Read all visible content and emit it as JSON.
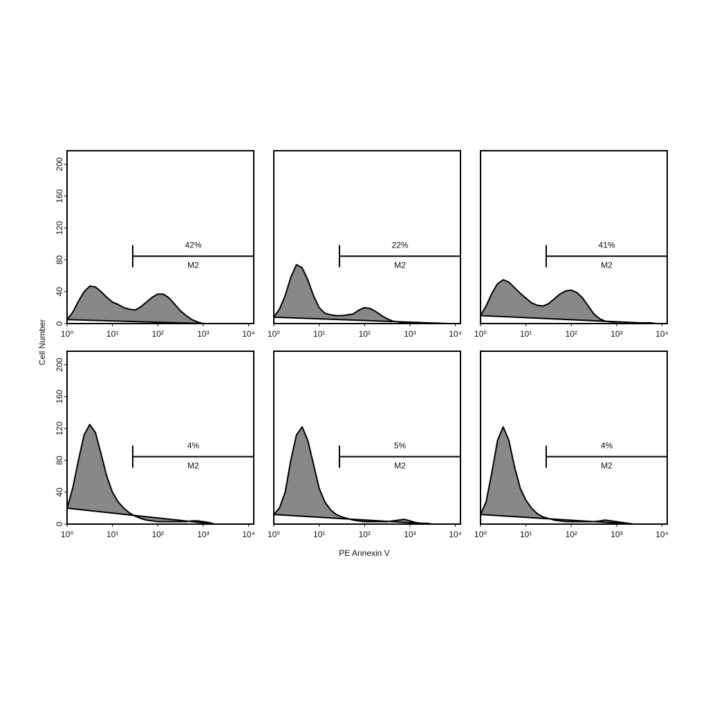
{
  "xlabel": "PE Annexin V",
  "ylabel": "Cell Number",
  "chart_data": [
    {
      "type": "area",
      "color": "#888888",
      "xscale": "log",
      "xlim": [
        1,
        13000
      ],
      "ylim": [
        0,
        217
      ],
      "yticks": [
        0,
        40,
        80,
        120,
        160,
        200
      ],
      "xticks": [
        {
          "value": 1,
          "label": "10⁰"
        },
        {
          "value": 10,
          "label": "10¹"
        },
        {
          "value": 100,
          "label": "10²"
        },
        {
          "value": 1000,
          "label": "10³"
        },
        {
          "value": 10000,
          "label": "10⁴"
        }
      ],
      "gate": {
        "label": "M2",
        "percent": "42%",
        "range": [
          28,
          13000
        ]
      },
      "x": [
        1,
        1.33,
        1.78,
        2.37,
        3.16,
        4.22,
        5.62,
        7.5,
        10,
        13.3,
        17.8,
        23.7,
        31.6,
        42.2,
        56.2,
        75,
        100,
        133,
        178,
        237,
        316,
        422,
        562,
        750,
        1000
      ],
      "values": [
        5,
        14,
        28,
        40,
        47,
        46,
        40,
        33,
        27,
        24,
        20,
        18,
        17,
        21,
        27,
        33,
        37,
        37,
        32,
        24,
        16,
        10,
        5,
        2,
        0
      ]
    },
    {
      "type": "area",
      "color": "#888888",
      "xscale": "log",
      "xlim": [
        1,
        13000
      ],
      "ylim": [
        0,
        217
      ],
      "xticks": [
        {
          "value": 1,
          "label": "10⁰"
        },
        {
          "value": 10,
          "label": "10¹"
        },
        {
          "value": 100,
          "label": "10²"
        },
        {
          "value": 1000,
          "label": "10³"
        },
        {
          "value": 10000,
          "label": "10⁴"
        }
      ],
      "gate": {
        "label": "M2",
        "percent": "22%",
        "range": [
          28,
          13000
        ]
      },
      "x": [
        1,
        1.33,
        1.78,
        2.37,
        3.16,
        4.22,
        5.62,
        7.5,
        10,
        13.3,
        17.8,
        23.7,
        31.6,
        42.2,
        56.2,
        75,
        100,
        133,
        178,
        237,
        316,
        422,
        562,
        750,
        1000,
        1334,
        1778,
        2371,
        3162,
        4217,
        5623,
        7499
      ],
      "values": [
        8,
        18,
        35,
        58,
        74,
        70,
        55,
        35,
        20,
        13,
        11,
        10,
        10,
        11,
        12,
        17,
        20,
        19,
        15,
        10,
        6,
        3,
        2,
        1,
        1,
        1,
        1,
        0.5,
        0,
        0,
        0,
        0
      ]
    },
    {
      "type": "area",
      "color": "#888888",
      "xscale": "log",
      "xlim": [
        1,
        13000
      ],
      "ylim": [
        0,
        217
      ],
      "xticks": [
        {
          "value": 1,
          "label": "10⁰"
        },
        {
          "value": 10,
          "label": "10¹"
        },
        {
          "value": 100,
          "label": "10²"
        },
        {
          "value": 1000,
          "label": "10³"
        },
        {
          "value": 10000,
          "label": "10⁴"
        }
      ],
      "gate": {
        "label": "M2",
        "percent": "41%",
        "range": [
          28,
          13000
        ]
      },
      "x": [
        1,
        1.33,
        1.78,
        2.37,
        3.16,
        4.22,
        5.62,
        7.5,
        10,
        13.3,
        17.8,
        23.7,
        31.6,
        42.2,
        56.2,
        75,
        100,
        133,
        178,
        237,
        316,
        422,
        562,
        750,
        1000,
        1334,
        1778,
        2371,
        3162,
        4217,
        5623,
        7499
      ],
      "values": [
        10,
        22,
        38,
        50,
        55,
        52,
        45,
        38,
        32,
        26,
        23,
        22,
        25,
        31,
        37,
        41,
        42,
        39,
        32,
        22,
        12,
        6,
        3,
        2,
        2,
        2,
        1,
        1,
        1,
        1,
        1,
        0
      ]
    },
    {
      "type": "area",
      "color": "#888888",
      "xscale": "log",
      "xlim": [
        1,
        13000
      ],
      "ylim": [
        0,
        217
      ],
      "yticks": [
        0,
        40,
        80,
        120,
        160,
        200
      ],
      "xticks": [
        {
          "value": 1,
          "label": "10⁰"
        },
        {
          "value": 10,
          "label": "10¹"
        },
        {
          "value": 100,
          "label": "10²"
        },
        {
          "value": 1000,
          "label": "10³"
        },
        {
          "value": 10000,
          "label": "10⁴"
        }
      ],
      "gate": {
        "label": "M2",
        "percent": "4%",
        "range": [
          28,
          13000
        ]
      },
      "x": [
        1,
        1.33,
        1.78,
        2.37,
        3.16,
        4.22,
        5.62,
        7.5,
        10,
        13.3,
        17.8,
        23.7,
        31.6,
        42.2,
        56.2,
        75,
        100,
        133,
        178,
        237,
        316,
        422,
        562,
        750,
        1000,
        1334,
        1778
      ],
      "values": [
        20,
        45,
        80,
        112,
        125,
        115,
        88,
        60,
        40,
        28,
        20,
        14,
        10,
        7,
        5,
        4,
        3,
        3,
        3,
        3,
        3,
        3,
        4,
        4,
        3,
        2,
        0
      ]
    },
    {
      "type": "area",
      "color": "#888888",
      "xscale": "log",
      "xlim": [
        1,
        13000
      ],
      "ylim": [
        0,
        217
      ],
      "xticks": [
        {
          "value": 1,
          "label": "10⁰"
        },
        {
          "value": 10,
          "label": "10¹"
        },
        {
          "value": 100,
          "label": "10²"
        },
        {
          "value": 1000,
          "label": "10³"
        },
        {
          "value": 10000,
          "label": "10⁴"
        }
      ],
      "gate": {
        "label": "M2",
        "percent": "5%",
        "range": [
          28,
          13000
        ]
      },
      "x": [
        1,
        1.33,
        1.78,
        2.37,
        3.16,
        4.22,
        5.62,
        7.5,
        10,
        13.3,
        17.8,
        23.7,
        31.6,
        42.2,
        56.2,
        75,
        100,
        133,
        178,
        237,
        316,
        422,
        562,
        750,
        1000,
        1334,
        1778,
        2371,
        3162
      ],
      "values": [
        12,
        20,
        40,
        80,
        112,
        122,
        105,
        75,
        45,
        28,
        18,
        12,
        9,
        7,
        5,
        4,
        3,
        3,
        3,
        3,
        3,
        4,
        5,
        6,
        4,
        2,
        1,
        1,
        0
      ]
    },
    {
      "type": "area",
      "color": "#888888",
      "xscale": "log",
      "xlim": [
        1,
        13000
      ],
      "ylim": [
        0,
        217
      ],
      "xticks": [
        {
          "value": 1,
          "label": "10⁰"
        },
        {
          "value": 10,
          "label": "10¹"
        },
        {
          "value": 100,
          "label": "10²"
        },
        {
          "value": 1000,
          "label": "10³"
        },
        {
          "value": 10000,
          "label": "10⁴"
        }
      ],
      "gate": {
        "label": "M2",
        "percent": "4%",
        "range": [
          28,
          13000
        ]
      },
      "x": [
        1,
        1.33,
        1.78,
        2.37,
        3.16,
        4.22,
        5.62,
        7.5,
        10,
        13.3,
        17.8,
        23.7,
        31.6,
        42.2,
        56.2,
        75,
        100,
        133,
        178,
        237,
        316,
        422,
        562,
        750,
        1000,
        1334,
        1778,
        2371
      ],
      "values": [
        12,
        28,
        65,
        105,
        122,
        105,
        72,
        45,
        30,
        20,
        13,
        9,
        7,
        5,
        4,
        3,
        3,
        3,
        3,
        3,
        3,
        4,
        5,
        4,
        3,
        2,
        1,
        0
      ]
    }
  ]
}
